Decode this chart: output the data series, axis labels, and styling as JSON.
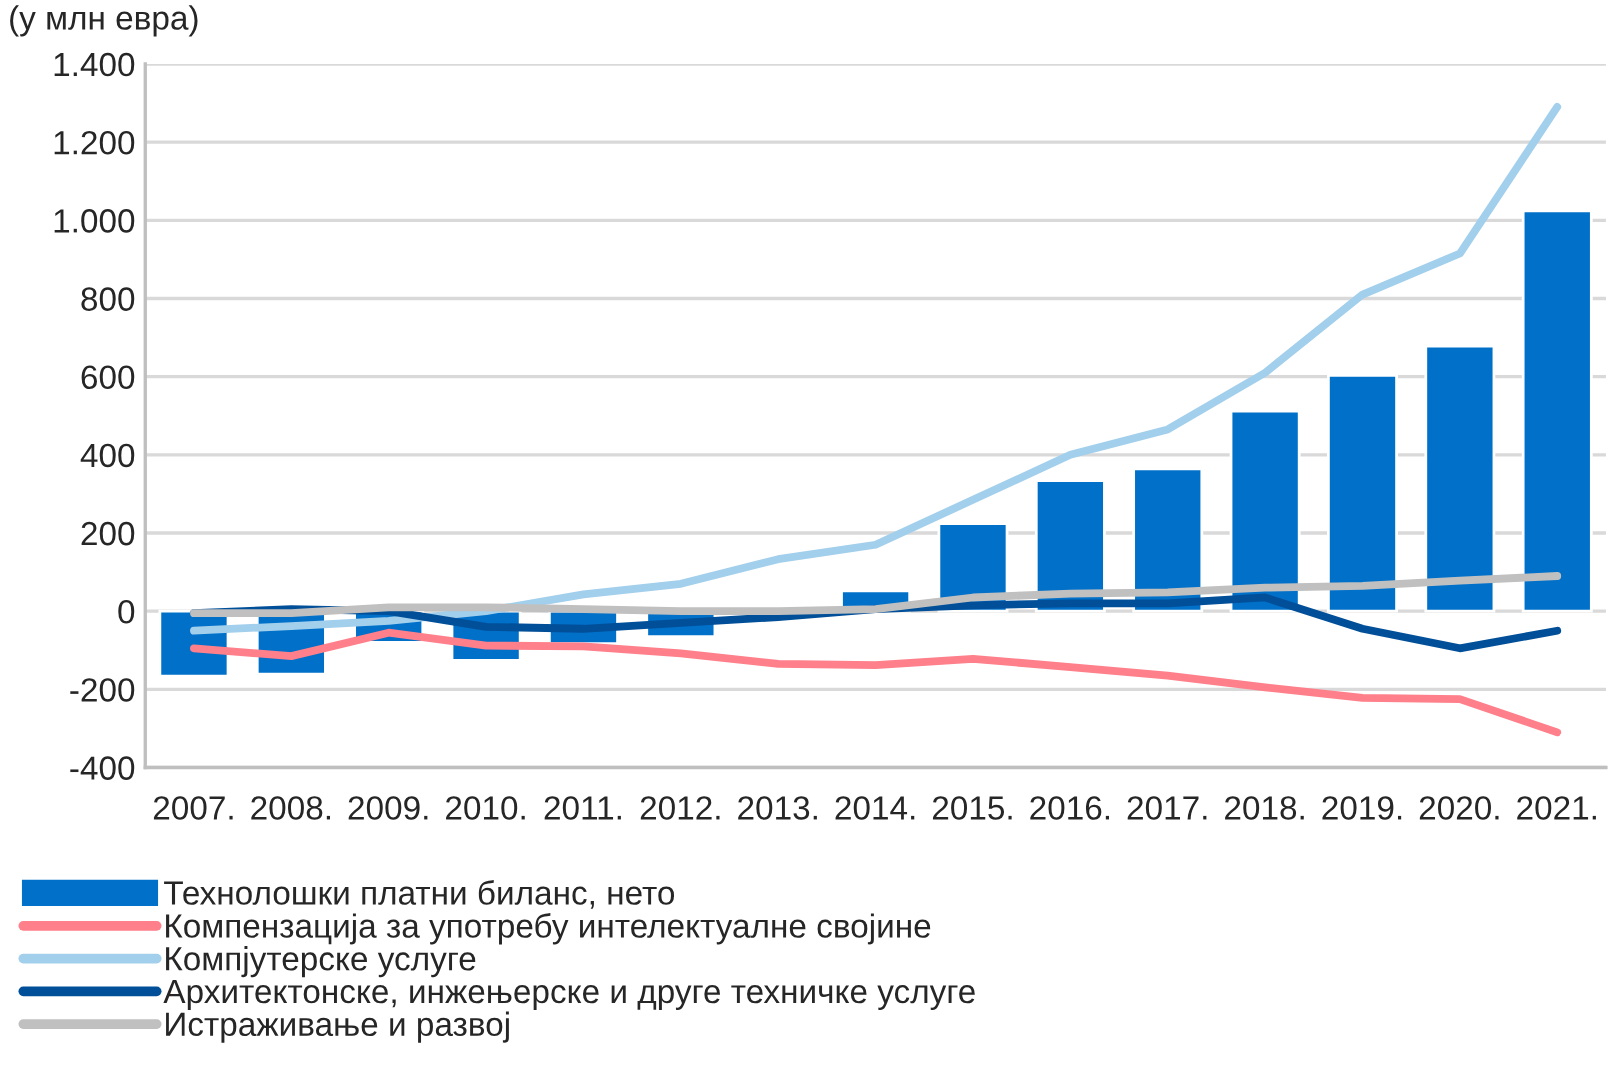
{
  "chart_data": {
    "type": "bar",
    "ylabel": "(у млн евра)",
    "categories": [
      "2007.",
      "2008.",
      "2009.",
      "2010.",
      "2011.",
      "2012.",
      "2013.",
      "2014.",
      "2015.",
      "2016.",
      "2017.",
      "2018.",
      "2019.",
      "2020.",
      "2021."
    ],
    "series": [
      {
        "name": "Технолошки платни биланс, нето",
        "color": "#0070c9",
        "values": [
          -166,
          -161,
          -80,
          -126,
          -83,
          -65,
          -5,
          52,
          224,
          334,
          364,
          512,
          603,
          678,
          1024
        ]
      },
      {
        "name": "Компензација за употребу интелектуалне својине",
        "type": "line",
        "color": "#ff7f8a",
        "values": [
          -95,
          -115,
          -55,
          -88,
          -90,
          -108,
          -135,
          -138,
          -122,
          -143,
          -165,
          -195,
          -222,
          -225,
          -310
        ]
      },
      {
        "name": "Компјутерске услуге",
        "type": "line",
        "color": "#a2cfec",
        "values": [
          -50,
          -38,
          -25,
          0,
          43,
          70,
          133,
          170,
          285,
          400,
          465,
          610,
          810,
          915,
          1290
        ]
      },
      {
        "name": "Архитектонске, инжењерске и друге техничке услуге",
        "type": "line",
        "color": "#004f98",
        "values": [
          -5,
          5,
          0,
          -40,
          -45,
          -30,
          -15,
          5,
          15,
          20,
          20,
          35,
          -45,
          -95,
          -50
        ]
      },
      {
        "name": "Истраживање и развој",
        "type": "line",
        "color": "#c0c0c0",
        "values": [
          -5,
          -5,
          10,
          10,
          5,
          0,
          0,
          5,
          35,
          45,
          48,
          60,
          65,
          78,
          90
        ]
      }
    ],
    "ylim": [
      -400,
      1400
    ],
    "yticks": [
      {
        "value": -400,
        "label": "-400"
      },
      {
        "value": -200,
        "label": "-200"
      },
      0,
      200,
      400,
      600,
      800,
      {
        "value": 1000,
        "label": "1.000"
      },
      {
        "value": 1200,
        "label": "1.200"
      },
      {
        "value": 1400,
        "label": "1.400"
      }
    ],
    "grid": "y",
    "legend": "bottom",
    "line_style": "solid",
    "marker": "none"
  }
}
